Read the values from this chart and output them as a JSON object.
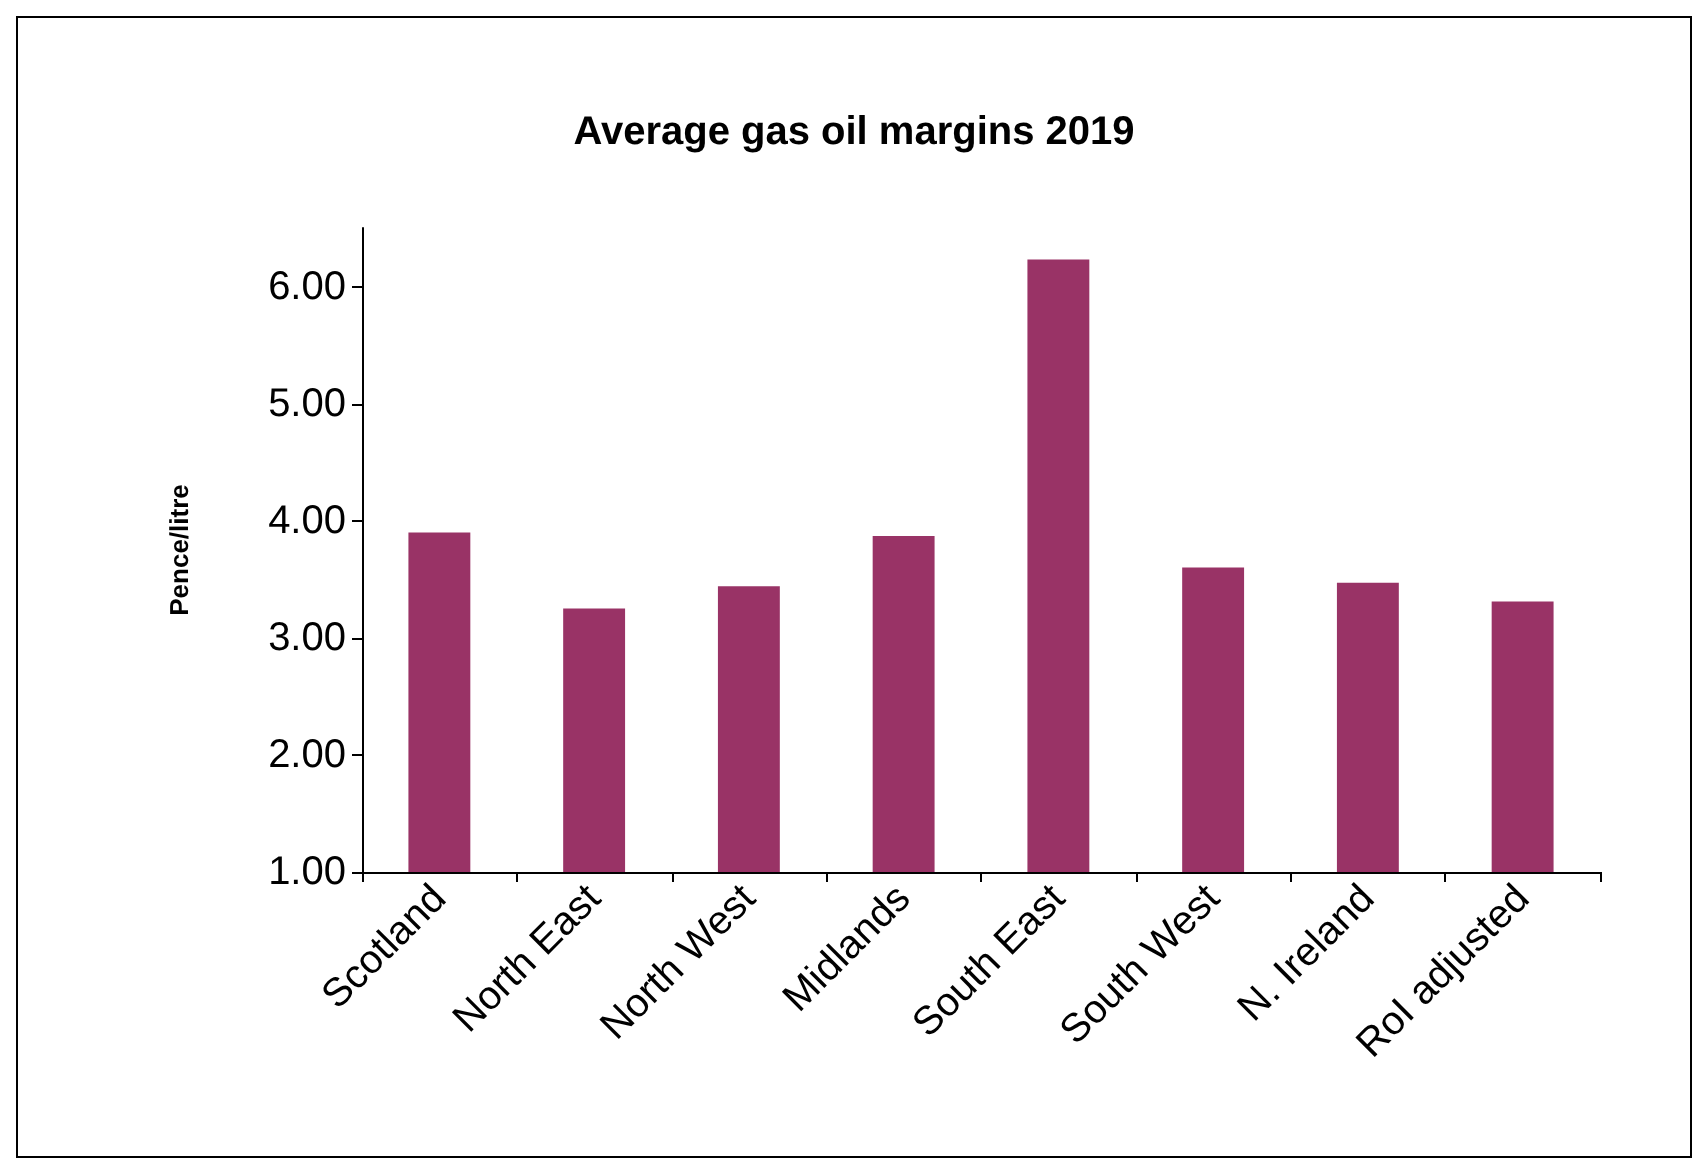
{
  "chart_data": {
    "type": "bar",
    "title": "Average gas oil margins 2019",
    "ylabel": "Pence/litre",
    "categories": [
      "Scotland",
      "North East",
      "North West",
      "Midlands",
      "South East",
      "South West",
      "N. Ireland",
      "RoI adjusted"
    ],
    "values": [
      3.9,
      3.25,
      3.44,
      3.87,
      6.23,
      3.6,
      3.47,
      3.31
    ],
    "color": "#993366",
    "ylim": [
      1,
      6.5
    ],
    "yticks": [
      {
        "value": 1,
        "label": "1.00"
      },
      {
        "value": 2,
        "label": "2.00"
      },
      {
        "value": 3,
        "label": "3.00"
      },
      {
        "value": 4,
        "label": "4.00"
      },
      {
        "value": 5,
        "label": "5.00"
      },
      {
        "value": 6,
        "label": "6.00"
      }
    ],
    "grid": false
  }
}
